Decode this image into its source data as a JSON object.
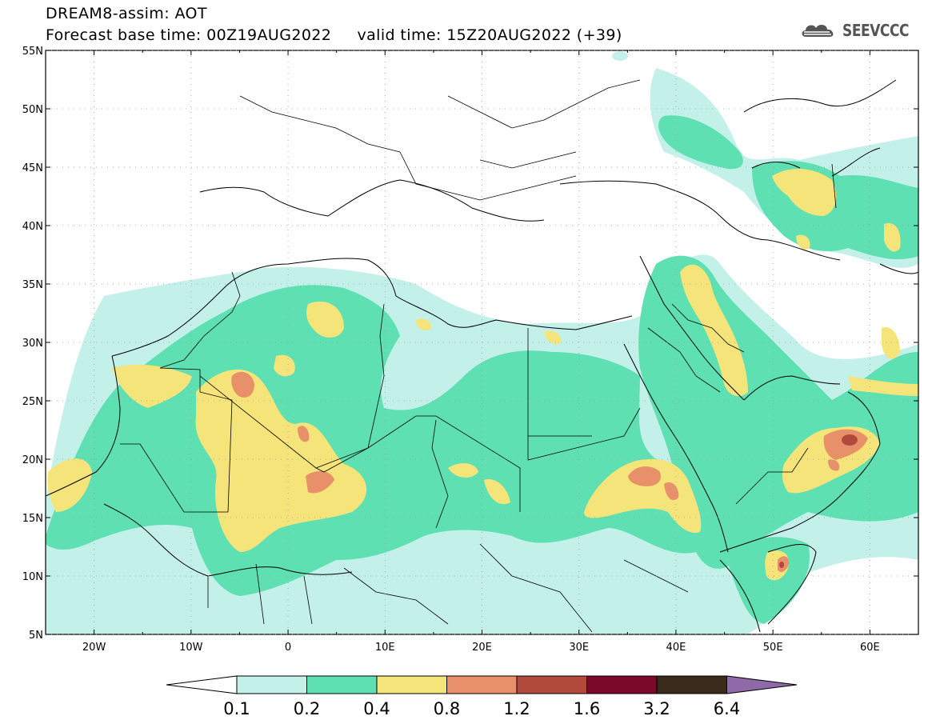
{
  "title": {
    "line1": "DREAM8-assim: AOT",
    "line2": "Forecast base time: 00Z19AUG2022     valid time: 15Z20AUG2022 (+39)"
  },
  "logo": {
    "text": "SEEVCCC",
    "icon": "cloud-icon"
  },
  "map": {
    "lon_range": [
      -25,
      65
    ],
    "lat_range": [
      5,
      55
    ],
    "lon_ticks": [
      "20W",
      "10W",
      "0",
      "10E",
      "20E",
      "30E",
      "40E",
      "50E",
      "60E"
    ],
    "lat_ticks": [
      "5N",
      "10N",
      "15N",
      "20N",
      "25N",
      "30N",
      "35N",
      "40N",
      "45N",
      "50N",
      "55N"
    ]
  },
  "colorbar": {
    "levels": [
      "0.1",
      "0.2",
      "0.4",
      "0.8",
      "1.2",
      "1.6",
      "3.2",
      "6.4"
    ],
    "colors": [
      "#ffffff",
      "#c4f0ea",
      "#5ee0b3",
      "#f5e47a",
      "#e8906a",
      "#b24a3c",
      "#7b0a2a",
      "#3a2a1a",
      "#8e6aa8"
    ]
  },
  "palette": {
    "aot_01_02": "#c4f0ea",
    "aot_02_04": "#5ee0b3",
    "aot_04_08": "#f5e47a",
    "aot_08_12": "#e8906a",
    "aot_12_16": "#b24a3c"
  }
}
